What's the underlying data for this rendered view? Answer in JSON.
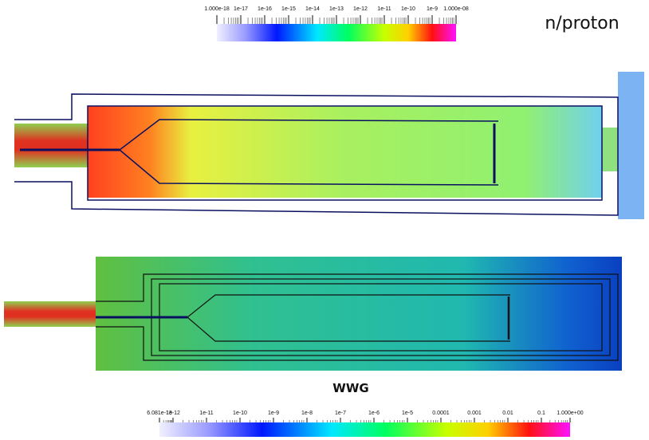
{
  "top_colorbar": {
    "labels": [
      "1.000e-18",
      "1e-17",
      "1e-16",
      "1e-15",
      "1e-14",
      "1e-13",
      "1e-12",
      "1e-11",
      "1e-10",
      "1e-9",
      "1.000e-08"
    ]
  },
  "unit_label": "n/proton",
  "bottom_title": "WWG",
  "bottom_colorbar": {
    "labels": [
      "6.081e-13",
      "1e-12",
      "1e-11",
      "1e-10",
      "1e-9",
      "1e-8",
      "1e-7",
      "1e-6",
      "1e-5",
      "0.0001",
      "0.001",
      "0.01",
      "0.1",
      "1.000e+00"
    ]
  }
}
